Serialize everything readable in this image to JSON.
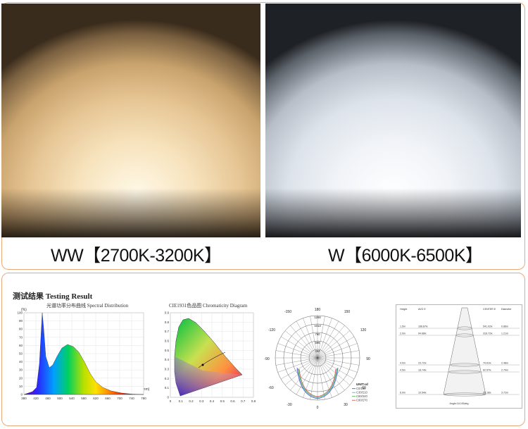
{
  "photos": {
    "warm_label": "WW【2700K-3200K】",
    "cool_label": "W【6000K-6500K】"
  },
  "testing": {
    "title": "测试结果 Testing Result",
    "spectral": {
      "title": "光谱功率分布曲线 Spectral Distribution",
      "y_unit": "(%)",
      "x_unit": "(nm)",
      "y_ticks": [
        "100",
        "90",
        "80",
        "70",
        "60",
        "50",
        "40",
        "30",
        "20",
        "10",
        "0"
      ],
      "x_ticks": [
        "380",
        "420",
        "460",
        "500",
        "540",
        "580",
        "620",
        "660",
        "700",
        "740",
        "780"
      ]
    },
    "cie": {
      "title": "CIE1931色品图 Chromaticity Diagram",
      "y_ticks": [
        "0.9",
        "0.8",
        "0.7",
        "0.6",
        "0.5",
        "0.4",
        "0.3",
        "0.2",
        "0.1",
        "0"
      ],
      "x_ticks": [
        "0",
        "0.1",
        "0.2",
        "0.3",
        "0.4",
        "0.5",
        "0.6",
        "0.7",
        "0.8"
      ]
    },
    "polar": {
      "angle_labels": [
        "-150",
        "180",
        "150",
        "-120",
        "120",
        "-90",
        "90",
        "-60",
        "60",
        "-30",
        "0",
        "30"
      ],
      "radial_labels": [
        "1266",
        "1013",
        "760",
        "506",
        "253"
      ],
      "legend_title": "UNIT:cd",
      "legend": [
        {
          "name": "C0/180",
          "color": "#4444cc"
        },
        {
          "name": "C30/210",
          "color": "#44aacc"
        },
        {
          "name": "C60/240",
          "color": "#44aa44"
        },
        {
          "name": "C90/270",
          "color": "#cc4444"
        }
      ]
    },
    "illuminance": {
      "headers": [
        "Height",
        "AVG E",
        "CENTER E",
        "Diameter"
      ],
      "rows": [
        [
          "1.5m",
          "166.87lx",
          "541.02lx",
          "0.86m"
        ],
        [
          "2.0m",
          "94.68lx",
          "316.72lx",
          "1.21m"
        ],
        [
          "4.0m",
          "23.72lx",
          "79.61lx",
          "2.48m"
        ],
        [
          "4.5m",
          "18.74lx",
          "62.57lx",
          "2.79m"
        ],
        [
          "6.0m",
          "10.54lx",
          "35.18lx",
          "3.72m"
        ]
      ],
      "footer": "Angle:110.83deg"
    }
  }
}
